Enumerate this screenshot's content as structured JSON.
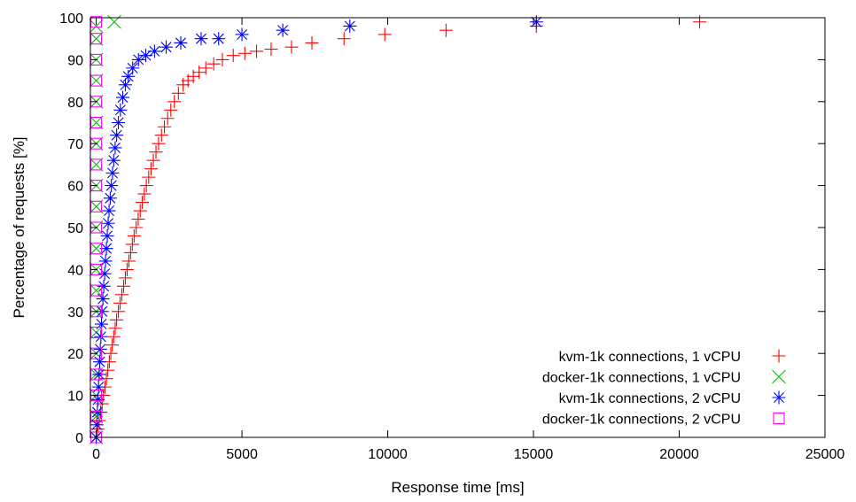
{
  "chart_data": {
    "type": "scatter",
    "title": "",
    "xlabel": "Response time [ms]",
    "ylabel": "Percentage of requests [%]",
    "xlim": [
      -200,
      25000
    ],
    "ylim": [
      0,
      100
    ],
    "xticks": [
      "0",
      "5000",
      "10000",
      "15000",
      "20000",
      "25000"
    ],
    "yticks": [
      "0",
      "10",
      "20",
      "30",
      "40",
      "50",
      "60",
      "70",
      "80",
      "90",
      "100"
    ],
    "grid": false,
    "legend_position": "bottom-right",
    "series": [
      {
        "name": "kvm-1k connections, 1 vCPU",
        "marker": "plus",
        "color": "#ff0000",
        "points": [
          [
            0,
            0
          ],
          [
            50,
            2
          ],
          [
            100,
            4
          ],
          [
            150,
            6
          ],
          [
            200,
            8
          ],
          [
            250,
            10
          ],
          [
            300,
            12
          ],
          [
            350,
            14
          ],
          [
            400,
            16
          ],
          [
            450,
            18
          ],
          [
            500,
            20
          ],
          [
            550,
            22
          ],
          [
            600,
            24
          ],
          [
            650,
            26
          ],
          [
            700,
            28
          ],
          [
            760,
            30
          ],
          [
            820,
            32
          ],
          [
            880,
            34
          ],
          [
            940,
            36
          ],
          [
            1000,
            38
          ],
          [
            1060,
            40
          ],
          [
            1120,
            42
          ],
          [
            1180,
            44
          ],
          [
            1240,
            46
          ],
          [
            1300,
            48
          ],
          [
            1370,
            50
          ],
          [
            1440,
            52
          ],
          [
            1510,
            54
          ],
          [
            1580,
            56
          ],
          [
            1650,
            58
          ],
          [
            1720,
            60
          ],
          [
            1800,
            62
          ],
          [
            1880,
            64
          ],
          [
            1960,
            66
          ],
          [
            2050,
            68
          ],
          [
            2140,
            70
          ],
          [
            2240,
            72
          ],
          [
            2340,
            74
          ],
          [
            2450,
            76
          ],
          [
            2560,
            78
          ],
          [
            2680,
            80
          ],
          [
            2820,
            82
          ],
          [
            2980,
            84
          ],
          [
            3150,
            85
          ],
          [
            3330,
            86
          ],
          [
            3530,
            87
          ],
          [
            3760,
            88
          ],
          [
            4030,
            89
          ],
          [
            4330,
            90
          ],
          [
            4700,
            91
          ],
          [
            5100,
            91.5
          ],
          [
            5500,
            92
          ],
          [
            6000,
            92.5
          ],
          [
            6700,
            93
          ],
          [
            7400,
            94
          ],
          [
            8500,
            95
          ],
          [
            9900,
            96
          ],
          [
            12000,
            97
          ],
          [
            15100,
            98
          ],
          [
            20700,
            99
          ]
        ]
      },
      {
        "name": "docker-1k connections, 1 vCPU",
        "marker": "cross",
        "color": "#00c000",
        "points": [
          [
            0,
            0
          ],
          [
            0,
            5
          ],
          [
            0,
            10
          ],
          [
            0,
            15
          ],
          [
            0,
            20
          ],
          [
            0,
            25
          ],
          [
            0,
            30
          ],
          [
            0,
            35
          ],
          [
            0,
            40
          ],
          [
            0,
            45
          ],
          [
            0,
            50
          ],
          [
            0,
            55
          ],
          [
            0,
            60
          ],
          [
            0,
            65
          ],
          [
            0,
            70
          ],
          [
            0,
            75
          ],
          [
            0,
            80
          ],
          [
            0,
            85
          ],
          [
            0,
            90
          ],
          [
            0,
            95
          ],
          [
            0,
            98
          ],
          [
            620,
            99
          ]
        ]
      },
      {
        "name": "kvm-1k connections, 2 vCPU",
        "marker": "star",
        "color": "#0000ff",
        "points": [
          [
            0,
            0
          ],
          [
            20,
            3
          ],
          [
            40,
            6
          ],
          [
            60,
            9
          ],
          [
            80,
            12
          ],
          [
            100,
            15
          ],
          [
            120,
            18
          ],
          [
            140,
            21
          ],
          [
            160,
            24
          ],
          [
            180,
            27
          ],
          [
            200,
            30
          ],
          [
            230,
            33
          ],
          [
            260,
            36
          ],
          [
            290,
            39
          ],
          [
            320,
            42
          ],
          [
            350,
            45
          ],
          [
            380,
            48
          ],
          [
            410,
            51
          ],
          [
            440,
            54
          ],
          [
            480,
            57
          ],
          [
            520,
            60
          ],
          [
            560,
            63
          ],
          [
            600,
            66
          ],
          [
            650,
            69
          ],
          [
            700,
            72
          ],
          [
            760,
            75
          ],
          [
            830,
            78
          ],
          [
            910,
            81
          ],
          [
            1000,
            84
          ],
          [
            1100,
            86
          ],
          [
            1250,
            88
          ],
          [
            1450,
            90
          ],
          [
            1700,
            91
          ],
          [
            2000,
            92
          ],
          [
            2400,
            93
          ],
          [
            2900,
            94
          ],
          [
            3600,
            95
          ],
          [
            4200,
            95
          ],
          [
            5000,
            96
          ],
          [
            6400,
            97
          ],
          [
            8700,
            98
          ],
          [
            15100,
            99
          ]
        ]
      },
      {
        "name": "docker-1k connections, 2 vCPU",
        "marker": "square",
        "color": "#ff00ff",
        "points": [
          [
            0,
            0
          ],
          [
            0,
            5
          ],
          [
            0,
            10
          ],
          [
            0,
            15
          ],
          [
            0,
            20
          ],
          [
            0,
            25
          ],
          [
            0,
            30
          ],
          [
            0,
            35
          ],
          [
            0,
            40
          ],
          [
            0,
            45
          ],
          [
            0,
            50
          ],
          [
            0,
            55
          ],
          [
            0,
            60
          ],
          [
            0,
            65
          ],
          [
            0,
            70
          ],
          [
            0,
            75
          ],
          [
            0,
            80
          ],
          [
            0,
            85
          ],
          [
            0,
            90
          ],
          [
            0,
            95
          ],
          [
            0,
            99
          ]
        ]
      }
    ]
  }
}
